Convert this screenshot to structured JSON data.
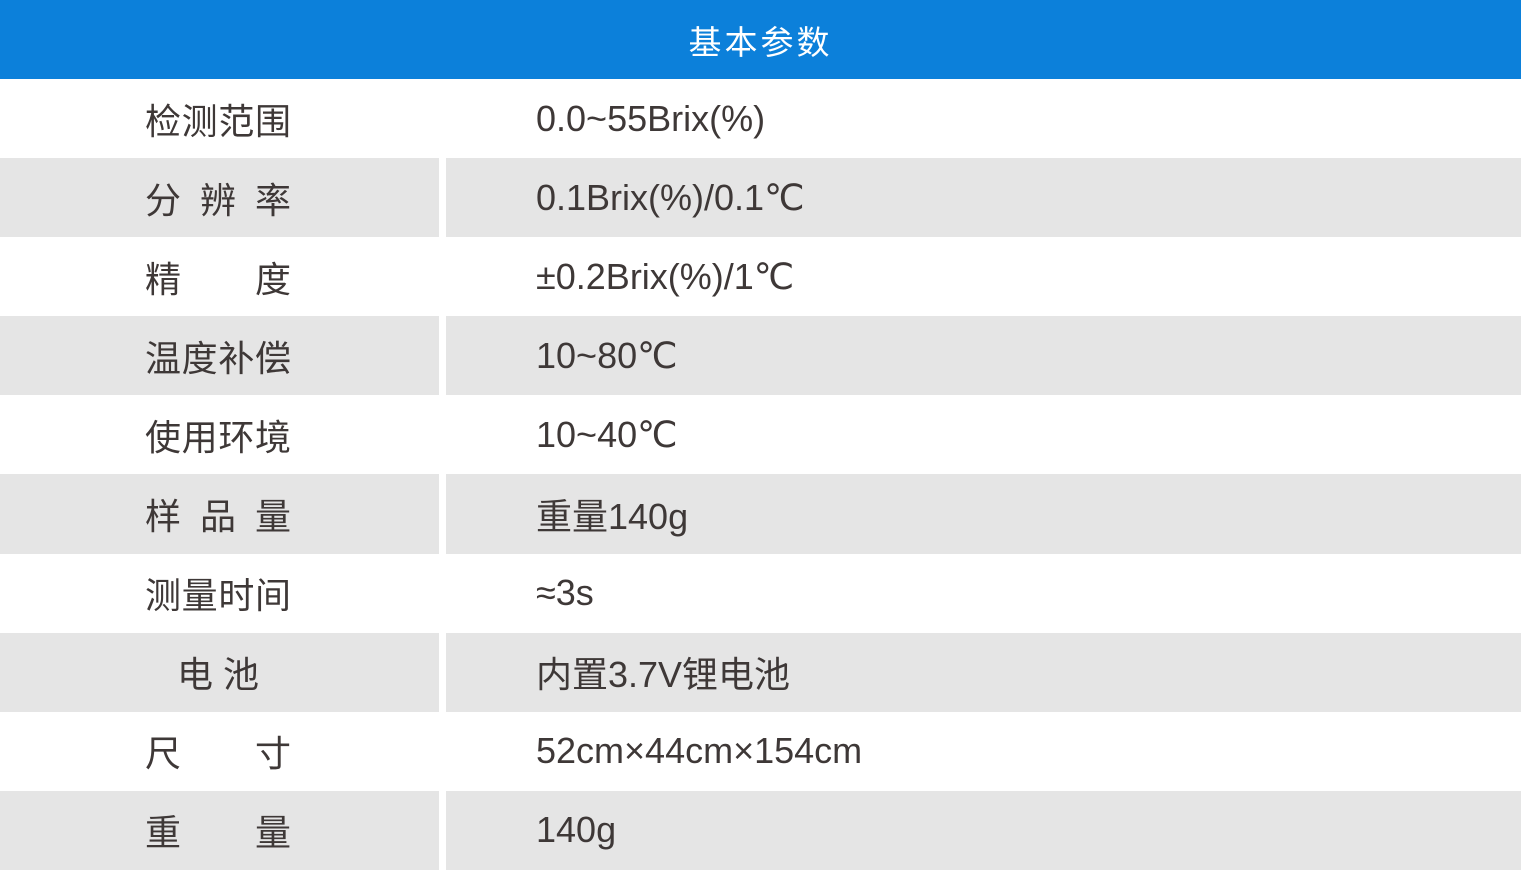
{
  "header": {
    "title": "基本参数"
  },
  "colors": {
    "header_bg": "#0c80da",
    "header_text": "#ffffff",
    "row_bg": "#ffffff",
    "row_alt_bg": "#e5e5e5",
    "text": "#3e3837"
  },
  "table": {
    "rows": [
      {
        "label": "检测范围",
        "value": "0.0~55Brix(%)"
      },
      {
        "label": "分辨率",
        "value": "0.1Brix(%)/0.1℃"
      },
      {
        "label": "精度",
        "value": "±0.2Brix(%)/1℃"
      },
      {
        "label": "温度补偿",
        "value": "10~80℃"
      },
      {
        "label": "使用环境",
        "value": "10~40℃"
      },
      {
        "label": "样品量",
        "value": "重量140g"
      },
      {
        "label": "测量时间",
        "value": "≈3s"
      },
      {
        "label": "电 池",
        "value": "内置3.7V锂电池"
      },
      {
        "label": "尺寸",
        "value": "52cm×44cm×154cm"
      },
      {
        "label": "重量",
        "value": "140g"
      }
    ]
  }
}
